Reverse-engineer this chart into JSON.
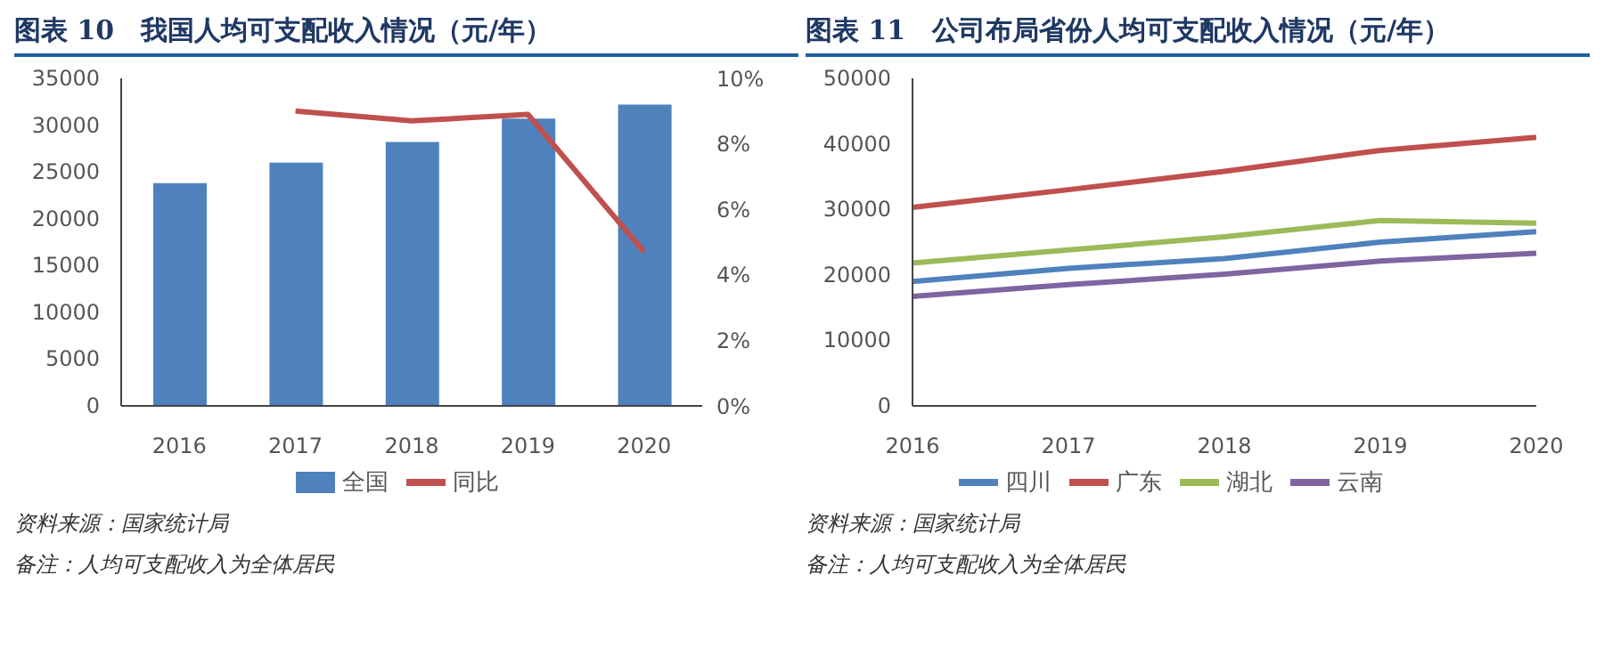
{
  "chart_data": [
    {
      "type": "bar",
      "title": "图表 10　我国人均可支配收入情况（元/年）",
      "categories": [
        "2016",
        "2017",
        "2018",
        "2019",
        "2020"
      ],
      "series": [
        {
          "name": "全国",
          "color": "#4f81bd",
          "values": [
            23800,
            26000,
            28200,
            30700,
            32200
          ]
        },
        {
          "name": "同比",
          "type": "line",
          "axis": "y2",
          "color": "#c0504d",
          "values": [
            null,
            9.0,
            8.7,
            8.9,
            4.7
          ]
        }
      ],
      "ylim": [
        0,
        35000
      ],
      "yticks": [
        0,
        5000,
        10000,
        15000,
        20000,
        25000,
        30000,
        35000
      ],
      "y2lim": [
        0,
        10
      ],
      "y2ticks": [
        {
          "value": 0,
          "label": "0%"
        },
        {
          "value": 2,
          "label": "2%"
        },
        {
          "value": 4,
          "label": "4%"
        },
        {
          "value": 6,
          "label": "6%"
        },
        {
          "value": 8,
          "label": "8%"
        },
        {
          "value": 10,
          "label": "10%"
        }
      ],
      "grid": false,
      "legend": "bottom",
      "marker": "none",
      "annotations": [
        "资料来源：国家统计局",
        "备注：人均可支配收入为全体居民"
      ]
    },
    {
      "type": "line",
      "title": "图表 11　公司布局省份人均可支配收入情况（元/年）",
      "categories": [
        "2016",
        "2017",
        "2018",
        "2019",
        "2020"
      ],
      "series": [
        {
          "name": "四川",
          "color": "#4f81bd",
          "values": [
            19000,
            21000,
            22500,
            25000,
            26600
          ]
        },
        {
          "name": "广东",
          "color": "#c0504d",
          "values": [
            30300,
            33000,
            35800,
            39000,
            41000
          ]
        },
        {
          "name": "湖北",
          "color": "#9bbb59",
          "values": [
            21800,
            23800,
            25800,
            28300,
            27900
          ]
        },
        {
          "name": "云南",
          "color": "#8064a2",
          "values": [
            16700,
            18500,
            20100,
            22100,
            23300
          ]
        }
      ],
      "ylim": [
        0,
        50000
      ],
      "yticks": [
        0,
        10000,
        20000,
        30000,
        40000,
        50000
      ],
      "grid": false,
      "legend": "bottom",
      "marker": "none",
      "annotations": [
        "资料来源：国家统计局",
        "备注：人均可支配收入为全体居民"
      ]
    }
  ]
}
